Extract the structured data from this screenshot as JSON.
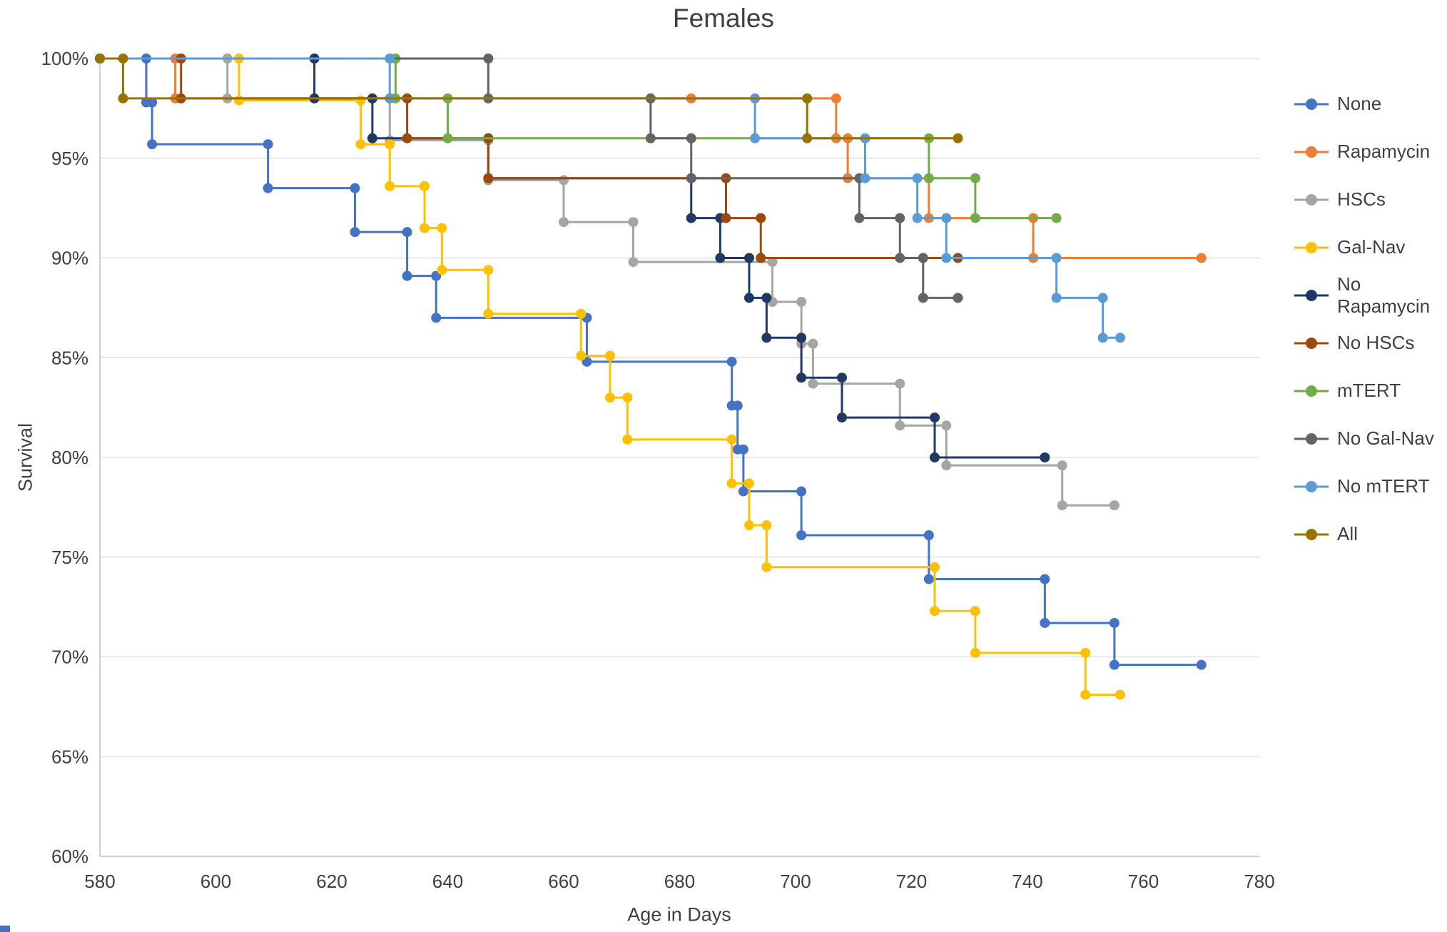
{
  "chart_data": {
    "type": "line",
    "subtype": "step-survival",
    "title": "Females",
    "xlabel": "Age in Days",
    "ylabel": "Survival",
    "xlim": [
      580,
      780
    ],
    "ylim": [
      60,
      100
    ],
    "x_ticks": [
      580,
      600,
      620,
      640,
      660,
      680,
      700,
      720,
      740,
      760,
      780
    ],
    "y_ticks": [
      {
        "value": 100,
        "label": "100%"
      },
      {
        "value": 95,
        "label": "95%"
      },
      {
        "value": 90,
        "label": "90%"
      },
      {
        "value": 85,
        "label": "85%"
      },
      {
        "value": 80,
        "label": "80%"
      },
      {
        "value": 75,
        "label": "75%"
      },
      {
        "value": 70,
        "label": "70%"
      },
      {
        "value": 65,
        "label": "65%"
      },
      {
        "value": 60,
        "label": "60%"
      }
    ],
    "grid": "horizontal",
    "gridline_color": "#D9D9D9",
    "axis_color": "#BFBFBF",
    "text_color": "#404040",
    "legend_position": "right",
    "series": [
      {
        "name": "None",
        "color": "#4472C4",
        "end": 770,
        "points": [
          [
            580,
            100
          ],
          [
            588,
            97.8
          ],
          [
            589,
            95.7
          ],
          [
            609,
            93.5
          ],
          [
            624,
            91.3
          ],
          [
            633,
            89.1
          ],
          [
            638,
            87.0
          ],
          [
            664,
            84.8
          ],
          [
            689,
            82.6
          ],
          [
            690,
            80.4
          ],
          [
            691,
            78.3
          ],
          [
            701,
            76.1
          ],
          [
            723,
            73.9
          ],
          [
            743,
            71.7
          ],
          [
            755,
            69.6
          ]
        ]
      },
      {
        "name": "Rapamycin",
        "color": "#ED7D31",
        "end": 770,
        "points": [
          [
            580,
            100
          ],
          [
            593,
            98
          ],
          [
            682,
            98
          ],
          [
            707,
            96
          ],
          [
            709,
            94
          ],
          [
            723,
            92
          ],
          [
            741,
            90
          ]
        ]
      },
      {
        "name": "HSCs",
        "color": "#A5A5A5",
        "end": 755,
        "points": [
          [
            580,
            100
          ],
          [
            602,
            98
          ],
          [
            630,
            95.9
          ],
          [
            647,
            93.9
          ],
          [
            660,
            91.8
          ],
          [
            672,
            89.8
          ],
          [
            696,
            87.8
          ],
          [
            701,
            85.7
          ],
          [
            703,
            83.7
          ],
          [
            718,
            81.6
          ],
          [
            726,
            79.6
          ],
          [
            746,
            77.6
          ]
        ]
      },
      {
        "name": "Gal-Nav",
        "color": "#FFC000",
        "end": 756,
        "points": [
          [
            580,
            100
          ],
          [
            604,
            97.9
          ],
          [
            625,
            95.7
          ],
          [
            630,
            93.6
          ],
          [
            636,
            91.5
          ],
          [
            639,
            89.4
          ],
          [
            647,
            87.2
          ],
          [
            663,
            85.1
          ],
          [
            668,
            83.0
          ],
          [
            671,
            80.9
          ],
          [
            689,
            78.7
          ],
          [
            692,
            76.6
          ],
          [
            695,
            74.5
          ],
          [
            724,
            72.3
          ],
          [
            731,
            70.2
          ],
          [
            750,
            68.1
          ]
        ]
      },
      {
        "name": "No Rapamycin",
        "color": "#203864",
        "end": 743,
        "points": [
          [
            580,
            100
          ],
          [
            617,
            98
          ],
          [
            627,
            96
          ],
          [
            647,
            94
          ],
          [
            682,
            92
          ],
          [
            687,
            90
          ],
          [
            692,
            88
          ],
          [
            695,
            86
          ],
          [
            701,
            84
          ],
          [
            708,
            82
          ],
          [
            724,
            80
          ]
        ]
      },
      {
        "name": "No HSCs",
        "color": "#9E480E",
        "end": 728,
        "points": [
          [
            580,
            100
          ],
          [
            594,
            98
          ],
          [
            633,
            96
          ],
          [
            647,
            94
          ],
          [
            688,
            92
          ],
          [
            694,
            90
          ]
        ]
      },
      {
        "name": "mTERT",
        "color": "#70AD47",
        "end": 745,
        "points": [
          [
            580,
            100
          ],
          [
            631,
            98
          ],
          [
            640,
            96
          ],
          [
            723,
            94
          ],
          [
            731,
            92
          ]
        ]
      },
      {
        "name": "No Gal-Nav",
        "color": "#636363",
        "end": 728,
        "points": [
          [
            580,
            100
          ],
          [
            647,
            98
          ],
          [
            675,
            96
          ],
          [
            682,
            94
          ],
          [
            711,
            92
          ],
          [
            718,
            90
          ],
          [
            722,
            88
          ]
        ]
      },
      {
        "name": "No mTERT",
        "color": "#5B9BD5",
        "end": 756,
        "points": [
          [
            580,
            100
          ],
          [
            630,
            98
          ],
          [
            693,
            96
          ],
          [
            712,
            94
          ],
          [
            721,
            92
          ],
          [
            726,
            90
          ],
          [
            745,
            88
          ],
          [
            753,
            86
          ]
        ]
      },
      {
        "name": "All",
        "color": "#997300",
        "end": 728,
        "points": [
          [
            580,
            100
          ],
          [
            584,
            98
          ],
          [
            702,
            96
          ]
        ]
      }
    ]
  }
}
